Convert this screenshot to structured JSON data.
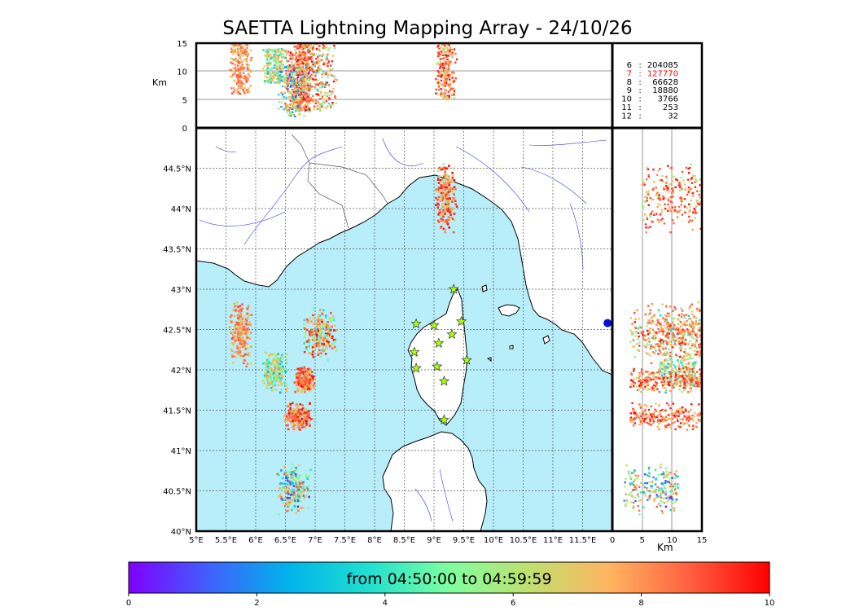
{
  "title": "SAETTA Lightning Mapping Array - 24/10/26",
  "colors": {
    "sea": "#b8eefa",
    "land": "#ffffff",
    "coast": "#000000",
    "rivers": "#3333ee",
    "borders": "#555555",
    "grid": "#555555",
    "station_fill": "#a8ff10",
    "highlight_count": "#ff0000"
  },
  "top_panel": {
    "ylabel": "Km",
    "yticks": [
      "15",
      "10",
      "5",
      "0"
    ]
  },
  "right_panel": {
    "xlabel": "Km",
    "xticks": [
      "0",
      "5",
      "10",
      "15"
    ]
  },
  "map": {
    "lon_labels": [
      "5°E",
      "5.5°E",
      "6°E",
      "6.5°E",
      "7°E",
      "7.5°E",
      "8°E",
      "8.5°E",
      "9°E",
      "9.5°E",
      "10°E",
      "10.5°E",
      "11°E",
      "11.5°E"
    ],
    "lat_labels": [
      "44.5°N",
      "44°N",
      "43.5°N",
      "43°N",
      "42.5°N",
      "42°N",
      "41.5°N",
      "41°N",
      "40.5°N",
      "40°N"
    ]
  },
  "station_counts": [
    {
      "stations": "6",
      "count": "204085",
      "highlight": false
    },
    {
      "stations": "7",
      "count": "127770",
      "highlight": true
    },
    {
      "stations": "8",
      "count": "66628",
      "highlight": false
    },
    {
      "stations": "9",
      "count": "18880",
      "highlight": false
    },
    {
      "stations": "10",
      "count": "3766",
      "highlight": false
    },
    {
      "stations": "11",
      "count": "253",
      "highlight": false
    },
    {
      "stations": "12",
      "count": "32",
      "highlight": false
    }
  ],
  "colorbar": {
    "caption": "from 04:50:00 to 04:59:59",
    "ticks": [
      "0",
      "2",
      "4",
      "6",
      "8",
      "10"
    ],
    "range": [
      0,
      10
    ],
    "colors": [
      "#7f00ff",
      "#4060fd",
      "#00b4eb",
      "#20e0d0",
      "#7fffa0",
      "#c0e070",
      "#ffb460",
      "#ff6040",
      "#ff0000"
    ]
  },
  "chart_data": {
    "type": "scatter",
    "title": "SAETTA Lightning Mapping Array - 24/10/26",
    "xlim": [
      5,
      12
    ],
    "ylim": [
      40,
      45
    ],
    "altitude_range_km": [
      0,
      15
    ],
    "color_scale": {
      "label": "from 04:50:00 to 04:59:59",
      "range": [
        0,
        10
      ]
    },
    "clusters": [
      {
        "lon": [
          9.0,
          9.4
        ],
        "lat": [
          43.7,
          44.6
        ],
        "alt_km": [
          5,
          15
        ],
        "time": [
          5,
          10
        ]
      },
      {
        "lon": [
          5.55,
          5.95
        ],
        "lat": [
          42.0,
          42.9
        ],
        "alt_km": [
          6,
          15
        ],
        "time": [
          6,
          9
        ]
      },
      {
        "lon": [
          6.1,
          6.55
        ],
        "lat": [
          41.7,
          42.25
        ],
        "alt_km": [
          8,
          14
        ],
        "time": [
          2,
          8
        ]
      },
      {
        "lon": [
          6.75,
          7.4
        ],
        "lat": [
          42.1,
          42.8
        ],
        "alt_km": [
          3,
          15
        ],
        "time": [
          3,
          10
        ]
      },
      {
        "lon": [
          6.65,
          7.0
        ],
        "lat": [
          41.7,
          42.05
        ],
        "alt_km": [
          3,
          15
        ],
        "time": [
          6,
          10
        ]
      },
      {
        "lon": [
          6.45,
          6.95
        ],
        "lat": [
          41.25,
          41.6
        ],
        "alt_km": [
          3,
          15
        ],
        "time": [
          6,
          10
        ]
      },
      {
        "lon": [
          6.35,
          6.95
        ],
        "lat": [
          40.2,
          40.85
        ],
        "alt_km": [
          2,
          11
        ],
        "time": [
          0,
          9
        ]
      }
    ],
    "stations": [
      {
        "lon": 9.33,
        "lat": 43.0
      },
      {
        "lon": 8.7,
        "lat": 42.57
      },
      {
        "lon": 9.0,
        "lat": 42.55
      },
      {
        "lon": 9.46,
        "lat": 42.6
      },
      {
        "lon": 9.3,
        "lat": 42.44
      },
      {
        "lon": 9.08,
        "lat": 42.33
      },
      {
        "lon": 8.67,
        "lat": 42.22
      },
      {
        "lon": 9.55,
        "lat": 42.12
      },
      {
        "lon": 8.7,
        "lat": 42.02
      },
      {
        "lon": 9.05,
        "lat": 42.04
      },
      {
        "lon": 9.17,
        "lat": 41.86
      },
      {
        "lon": 9.17,
        "lat": 41.38
      }
    ]
  }
}
